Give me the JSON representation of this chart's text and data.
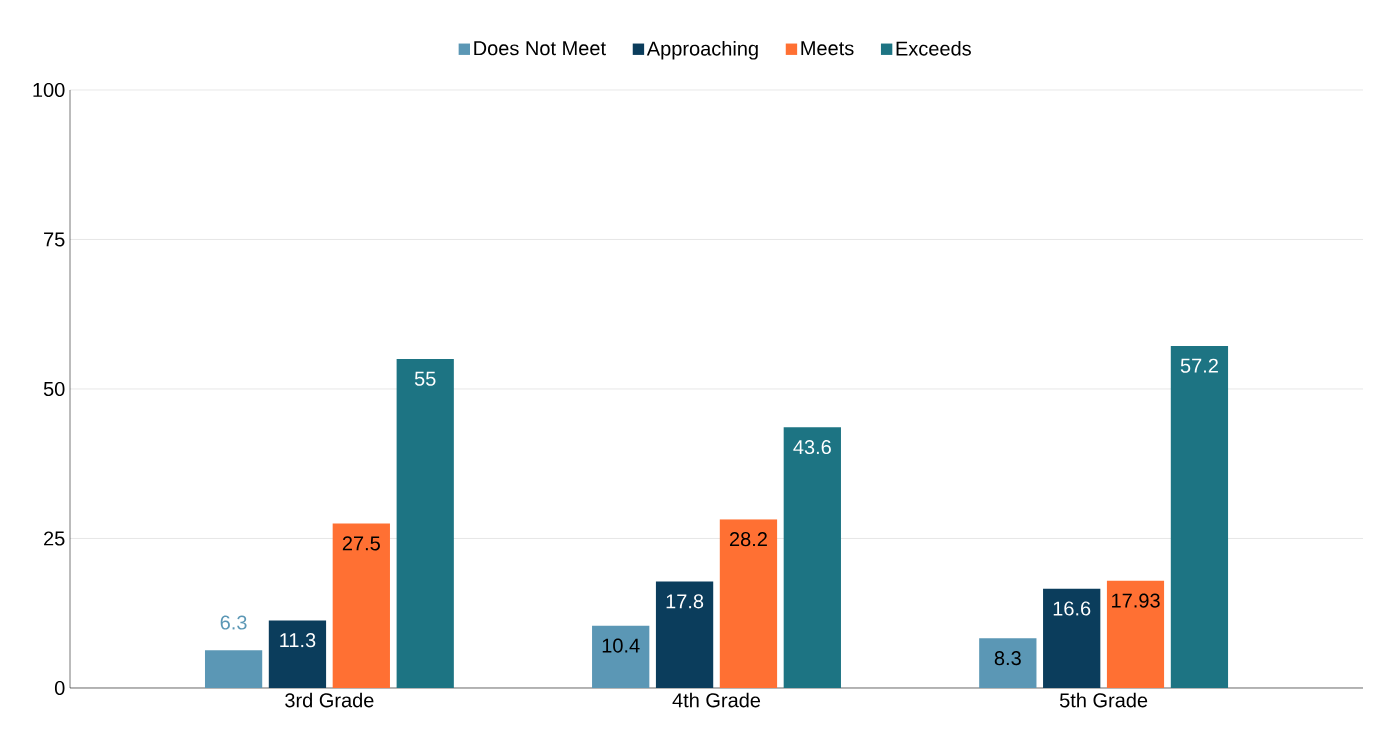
{
  "chart_data": {
    "type": "bar",
    "categories": [
      "3rd Grade",
      "4th Grade",
      "5th Grade"
    ],
    "series": [
      {
        "name": "Does Not Meet",
        "color": "#5b97b5",
        "values": [
          6.3,
          10.4,
          8.3
        ]
      },
      {
        "name": "Approaching",
        "color": "#0b3d5c",
        "values": [
          11.3,
          17.8,
          16.6
        ]
      },
      {
        "name": "Meets",
        "color": "#ff7033",
        "values": [
          27.5,
          28.2,
          17.93
        ]
      },
      {
        "name": "Exceeds",
        "color": "#1d7483",
        "values": [
          55,
          43.6,
          57.2
        ]
      }
    ],
    "ylim": [
      0,
      100
    ],
    "yticks": [
      0,
      25,
      50,
      75,
      100
    ],
    "grid": "y",
    "legend": "top",
    "data_labels": true
  }
}
